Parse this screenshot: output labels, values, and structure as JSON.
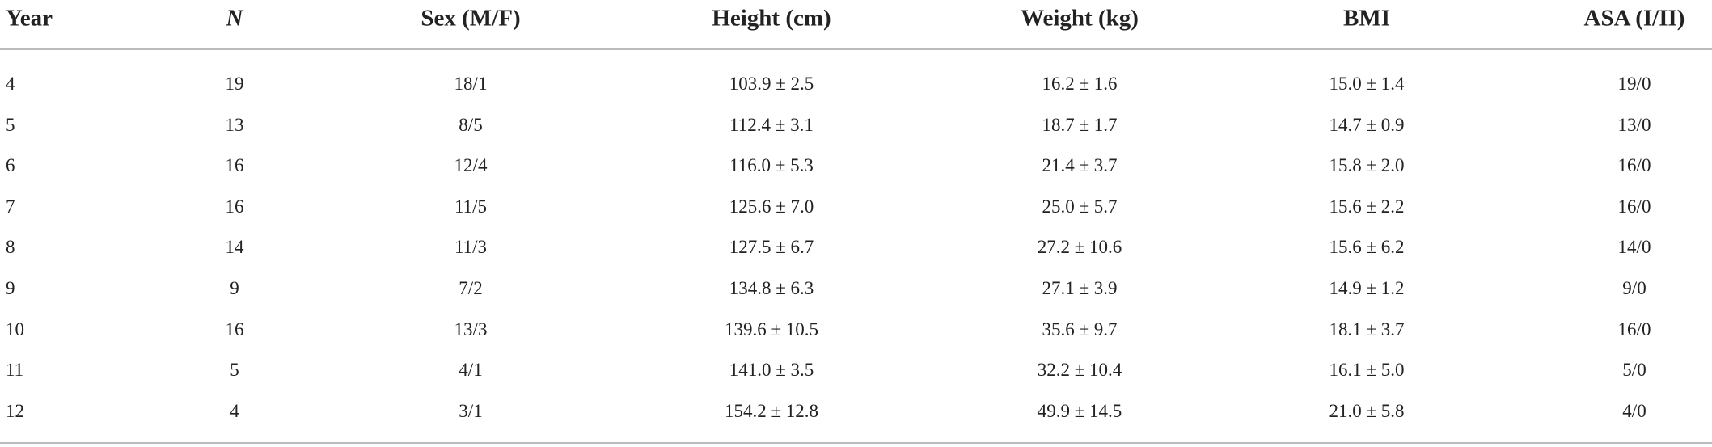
{
  "table": {
    "header": [
      "Year",
      "N",
      "Sex (M/F)",
      "Height (cm)",
      "Weight (kg)",
      "BMI",
      "ASA (I/II)"
    ],
    "rows": [
      [
        "4",
        "19",
        "18/1",
        "103.9 ± 2.5",
        "16.2 ± 1.6",
        "15.0 ± 1.4",
        "19/0"
      ],
      [
        "5",
        "13",
        "8/5",
        "112.4 ± 3.1",
        "18.7 ± 1.7",
        "14.7 ± 0.9",
        "13/0"
      ],
      [
        "6",
        "16",
        "12/4",
        "116.0 ± 5.3",
        "21.4 ± 3.7",
        "15.8 ± 2.0",
        "16/0"
      ],
      [
        "7",
        "16",
        "11/5",
        "125.6 ± 7.0",
        "25.0 ± 5.7",
        "15.6 ± 2.2",
        "16/0"
      ],
      [
        "8",
        "14",
        "11/3",
        "127.5 ± 6.7",
        "27.2 ± 10.6",
        "15.6 ± 6.2",
        "14/0"
      ],
      [
        "9",
        "9",
        "7/2",
        "134.8 ± 6.3",
        "27.1 ± 3.9",
        "14.9 ± 1.2",
        "9/0"
      ],
      [
        "10",
        "16",
        "13/3",
        "139.6 ± 10.5",
        "35.6 ± 9.7",
        "18.1 ± 3.7",
        "16/0"
      ],
      [
        "11",
        "5",
        "4/1",
        "141.0 ± 3.5",
        "32.2 ± 10.4",
        "16.1 ± 5.0",
        "5/0"
      ],
      [
        "12",
        "4",
        "3/1",
        "154.2 ± 12.8",
        "49.9 ± 14.5",
        "21.0 ± 5.8",
        "4/0"
      ]
    ]
  }
}
